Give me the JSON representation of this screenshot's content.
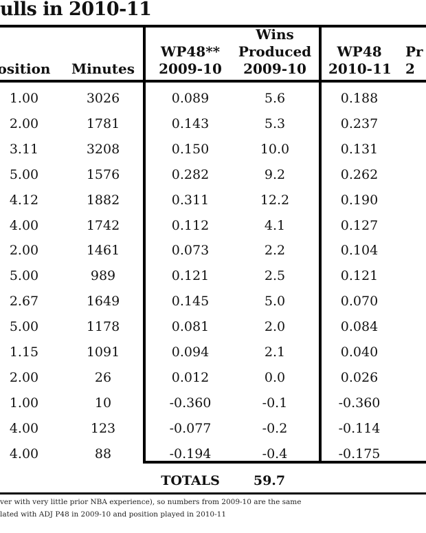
{
  "title": "ulls in 2010-11",
  "headers": {
    "position": [
      "osition"
    ],
    "minutes": [
      "Minutes"
    ],
    "wp48_0910": [
      "WP48**",
      "2009-10"
    ],
    "wins_produced_0910": [
      "Wins",
      "Produced",
      "2009-10"
    ],
    "wp48_1011": [
      "WP48",
      "2010-11"
    ],
    "partial": [
      "Pr",
      "2"
    ]
  },
  "rows": [
    {
      "position": "1.00",
      "minutes": "3026",
      "wp48_0910": "0.089",
      "wins_0910": "5.6",
      "wp48_1011": "0.188"
    },
    {
      "position": "2.00",
      "minutes": "1781",
      "wp48_0910": "0.143",
      "wins_0910": "5.3",
      "wp48_1011": "0.237"
    },
    {
      "position": "3.11",
      "minutes": "3208",
      "wp48_0910": "0.150",
      "wins_0910": "10.0",
      "wp48_1011": "0.131"
    },
    {
      "position": "5.00",
      "minutes": "1576",
      "wp48_0910": "0.282",
      "wins_0910": "9.2",
      "wp48_1011": "0.262"
    },
    {
      "position": "4.12",
      "minutes": "1882",
      "wp48_0910": "0.311",
      "wins_0910": "12.2",
      "wp48_1011": "0.190"
    },
    {
      "position": "4.00",
      "minutes": "1742",
      "wp48_0910": "0.112",
      "wins_0910": "4.1",
      "wp48_1011": "0.127"
    },
    {
      "position": "2.00",
      "minutes": "1461",
      "wp48_0910": "0.073",
      "wins_0910": "2.2",
      "wp48_1011": "0.104"
    },
    {
      "position": "5.00",
      "minutes": "989",
      "wp48_0910": "0.121",
      "wins_0910": "2.5",
      "wp48_1011": "0.121"
    },
    {
      "position": "2.67",
      "minutes": "1649",
      "wp48_0910": "0.145",
      "wins_0910": "5.0",
      "wp48_1011": "0.070"
    },
    {
      "position": "5.00",
      "minutes": "1178",
      "wp48_0910": "0.081",
      "wins_0910": "2.0",
      "wp48_1011": "0.084"
    },
    {
      "position": "1.15",
      "minutes": "1091",
      "wp48_0910": "0.094",
      "wins_0910": "2.1",
      "wp48_1011": "0.040"
    },
    {
      "position": "2.00",
      "minutes": "26",
      "wp48_0910": "0.012",
      "wins_0910": "0.0",
      "wp48_1011": "0.026"
    },
    {
      "position": "1.00",
      "minutes": "10",
      "wp48_0910": "-0.360",
      "wins_0910": "-0.1",
      "wp48_1011": "-0.360"
    },
    {
      "position": "4.00",
      "minutes": "123",
      "wp48_0910": "-0.077",
      "wins_0910": "-0.2",
      "wp48_1011": "-0.114"
    },
    {
      "position": "4.00",
      "minutes": "88",
      "wp48_0910": "-0.194",
      "wins_0910": "-0.4",
      "wp48_1011": "-0.175"
    }
  ],
  "totals": {
    "label": "TOTALS",
    "wins_0910": "59.7"
  },
  "footnotes": [
    "ver with very little prior NBA experience), so numbers from 2009-10 are the same",
    "lated with ADJ P48 in 2009-10 and position played in 2010-11"
  ]
}
